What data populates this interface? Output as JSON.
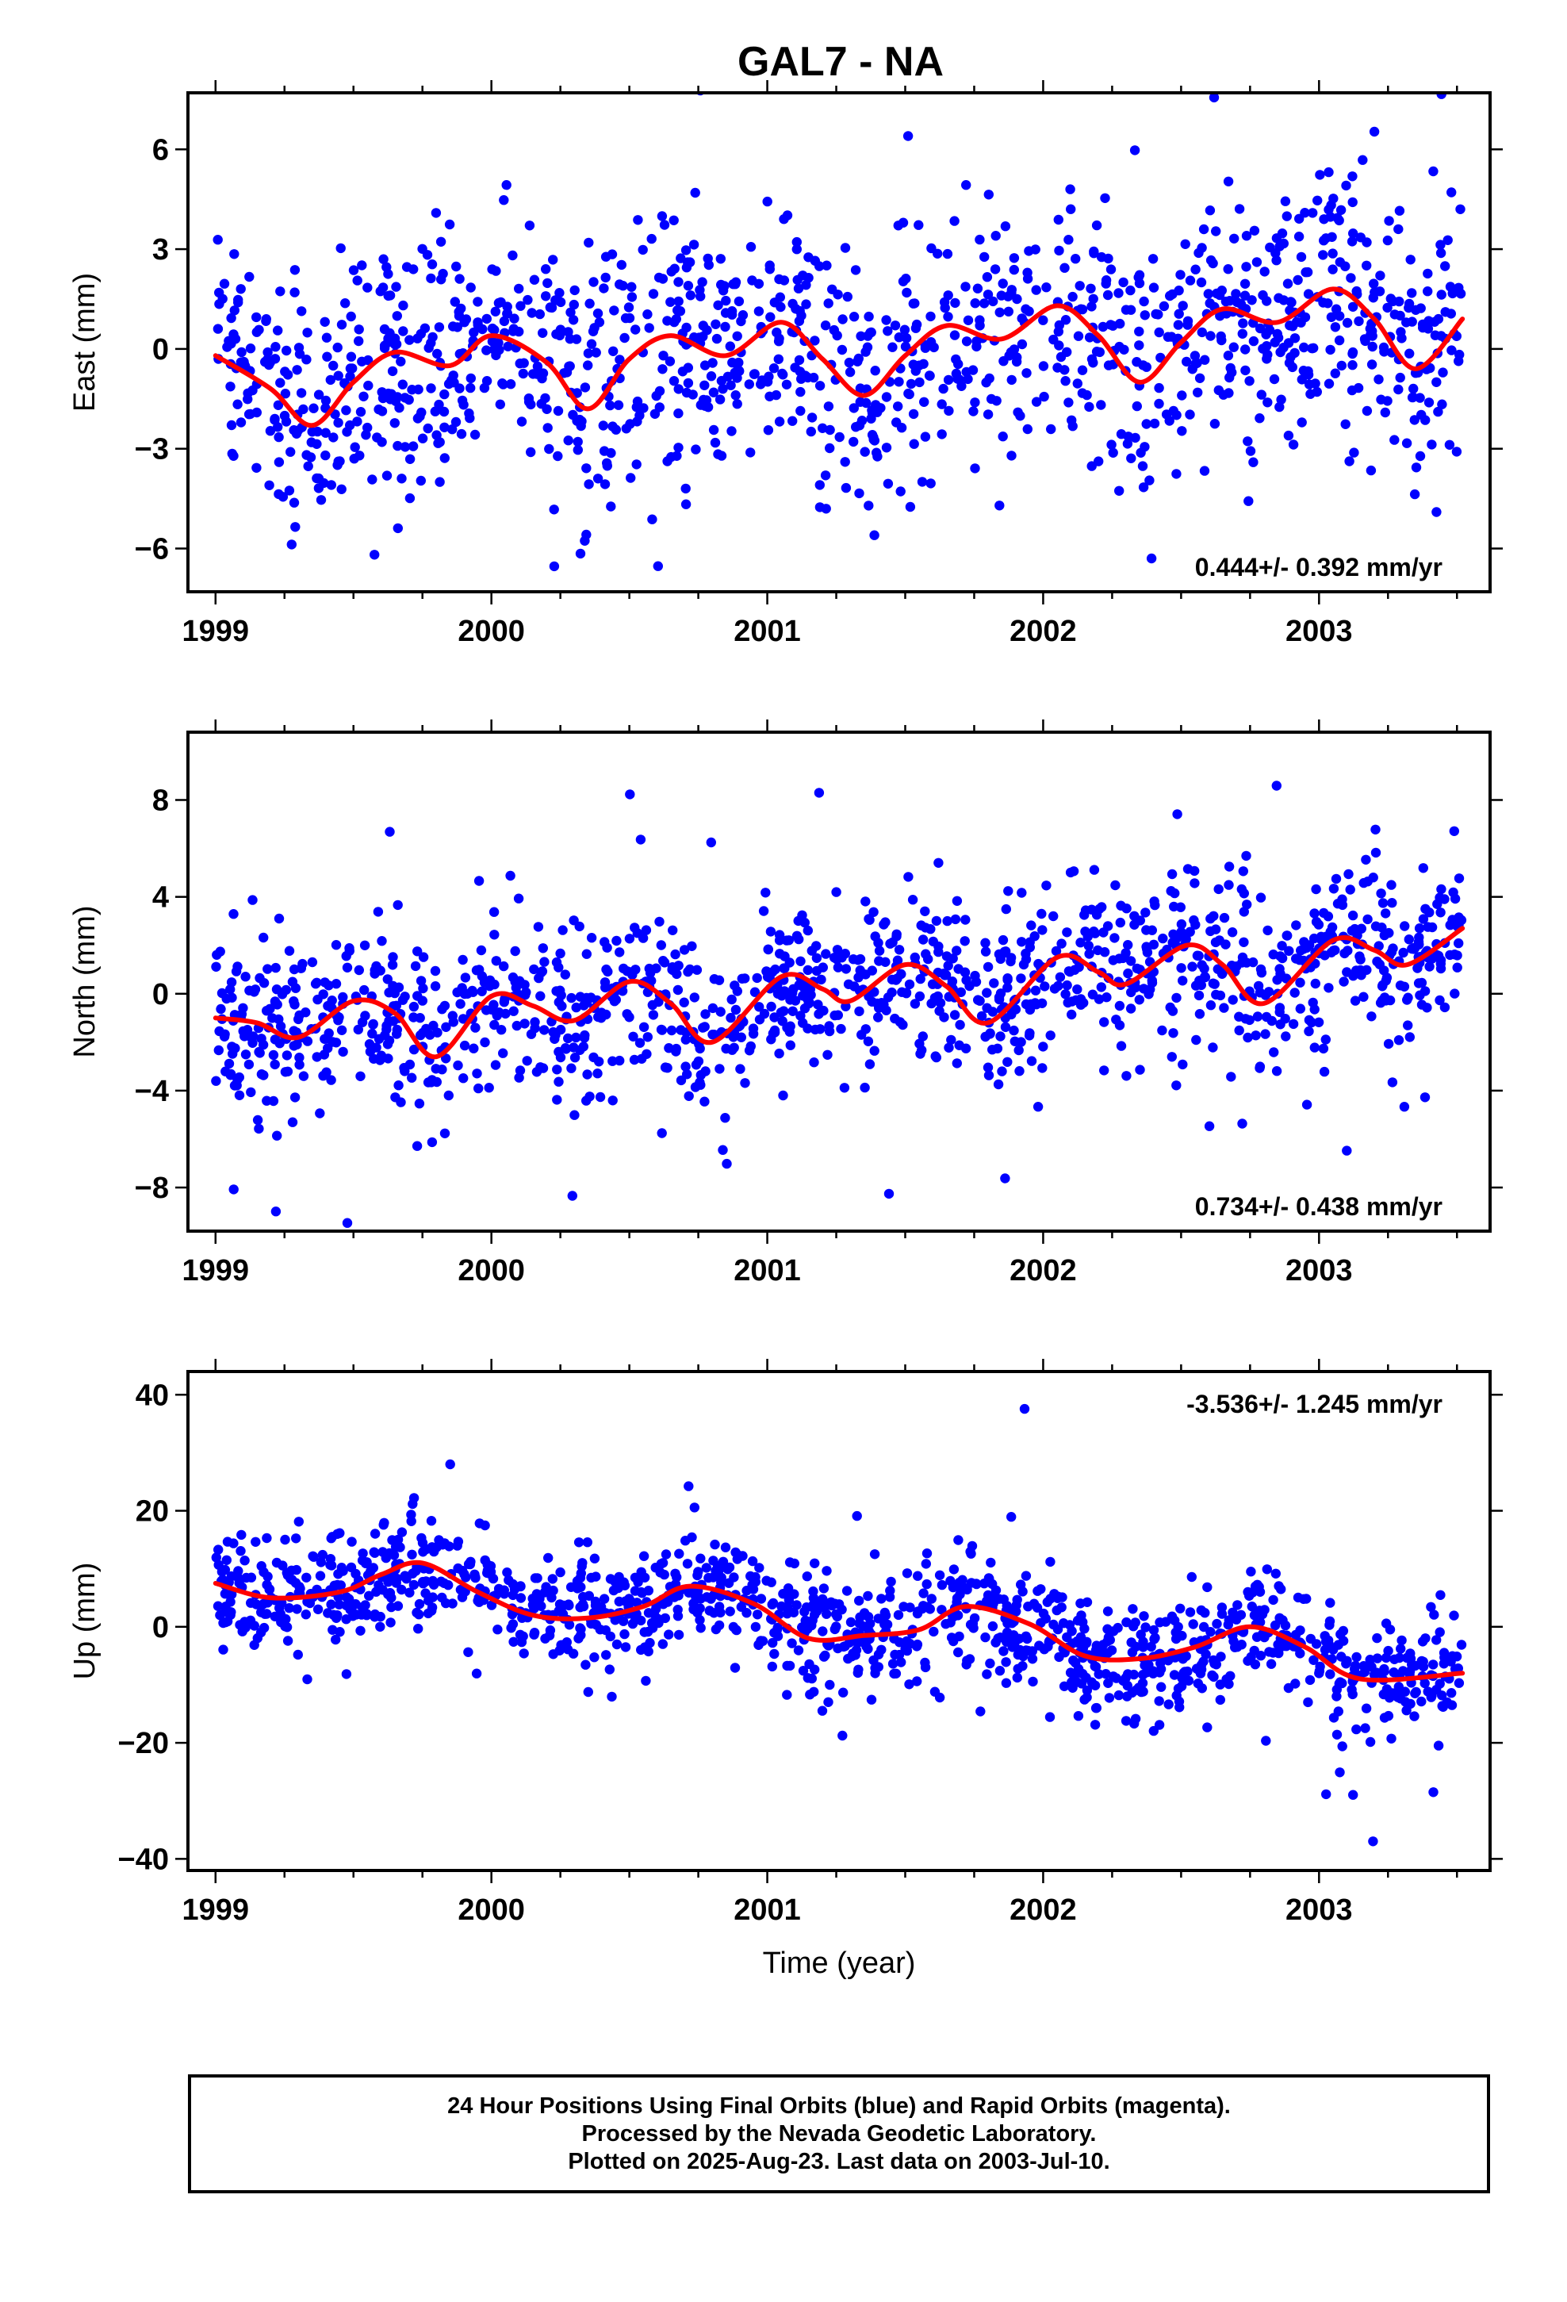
{
  "title": "GAL7 - NA",
  "xlabel": "Time (year)",
  "footer": {
    "line1": "24 Hour Positions Using Final Orbits (blue) and Rapid Orbits (magenta).",
    "line2": "Processed by the Nevada Geodetic Laboratory.",
    "line3": "Plotted on 2025-Aug-23. Last data on 2003-Jul-10."
  },
  "colors": {
    "points": "#0000ff",
    "fit": "#ff0000",
    "axes": "#000000"
  },
  "chart_data": [
    {
      "type": "scatter",
      "ylabel": "East (mm)",
      "rate_label": "0.444+/- 0.392 mm/yr",
      "xlim": [
        1998.9,
        2003.62
      ],
      "ylim": [
        -7.3,
        7.7
      ],
      "xticks": [
        1999,
        2000,
        2001,
        2002,
        2003
      ],
      "yticks": [
        -6,
        -3,
        0,
        3,
        6
      ],
      "ytick_labels": [
        "−6",
        "−3",
        "0",
        "3",
        "6"
      ],
      "grid": false,
      "fit_x": [
        1999.0,
        1999.2,
        1999.35,
        1999.5,
        1999.65,
        1999.85,
        2000.0,
        2000.2,
        2000.35,
        2000.5,
        2000.65,
        2000.85,
        2001.05,
        2001.2,
        2001.35,
        2001.5,
        2001.65,
        2001.85,
        2002.05,
        2002.2,
        2002.35,
        2002.5,
        2002.65,
        2002.85,
        2003.05,
        2003.2,
        2003.35,
        2003.52
      ],
      "fit_y": [
        -0.2,
        -1.2,
        -2.3,
        -1.0,
        -0.1,
        -0.5,
        0.4,
        -0.4,
        -1.8,
        -0.3,
        0.4,
        -0.2,
        0.8,
        -0.3,
        -1.4,
        -0.2,
        0.7,
        0.3,
        1.3,
        0.4,
        -1.0,
        0.2,
        1.2,
        0.8,
        1.8,
        0.9,
        -0.6,
        0.9
      ],
      "scatter_model": {
        "n": 1300,
        "seed": 11,
        "noise_sd": 1.9,
        "outlier_fraction": 0.04,
        "outlier_scale": 2.6
      }
    },
    {
      "type": "scatter",
      "ylabel": "North (mm)",
      "rate_label": "0.734+/- 0.438 mm/yr",
      "xlim": [
        1998.9,
        2003.62
      ],
      "ylim": [
        -9.8,
        10.8
      ],
      "xticks": [
        1999,
        2000,
        2001,
        2002,
        2003
      ],
      "yticks": [
        -8,
        -4,
        0,
        4,
        8
      ],
      "ytick_labels": [
        "−8",
        "−4",
        "0",
        "4",
        "8"
      ],
      "grid": false,
      "fit_x": [
        1999.0,
        1999.15,
        1999.3,
        1999.5,
        1999.65,
        1999.8,
        2000.0,
        2000.15,
        2000.3,
        2000.5,
        2000.65,
        2000.8,
        2001.05,
        2001.2,
        2001.3,
        2001.5,
        2001.65,
        2001.8,
        2002.05,
        2002.2,
        2002.3,
        2002.52,
        2002.65,
        2002.8,
        2003.05,
        2003.2,
        2003.32,
        2003.52
      ],
      "fit_y": [
        -1.0,
        -1.2,
        -1.8,
        -0.3,
        -0.8,
        -2.6,
        -0.1,
        -0.5,
        -1.1,
        0.5,
        -0.4,
        -2.0,
        0.7,
        0.2,
        -0.3,
        1.2,
        0.3,
        -1.2,
        1.5,
        0.9,
        0.4,
        2.0,
        1.2,
        -0.4,
        2.2,
        1.8,
        1.2,
        2.7
      ],
      "scatter_model": {
        "n": 1300,
        "seed": 23,
        "noise_sd": 1.7,
        "outlier_fraction": 0.04,
        "outlier_scale": 2.8
      }
    },
    {
      "type": "scatter",
      "ylabel": "Up (mm)",
      "rate_label": "-3.536+/- 1.245 mm/yr",
      "xlim": [
        1998.9,
        2003.62
      ],
      "ylim": [
        -42,
        44
      ],
      "xticks": [
        1999,
        2000,
        2001,
        2002,
        2003
      ],
      "yticks": [
        -40,
        -20,
        0,
        20,
        40
      ],
      "ytick_labels": [
        "−40",
        "−20",
        "0",
        "20",
        "40"
      ],
      "grid": false,
      "fit_x": [
        1999.0,
        1999.2,
        1999.45,
        1999.6,
        1999.75,
        1999.95,
        2000.15,
        2000.35,
        2000.55,
        2000.72,
        2000.95,
        2001.15,
        2001.35,
        2001.55,
        2001.72,
        2001.95,
        2002.15,
        2002.35,
        2002.55,
        2002.75,
        2002.95,
        2003.15,
        2003.52
      ],
      "fit_y": [
        7.5,
        5.0,
        6.0,
        9.0,
        11.0,
        6.0,
        2.0,
        1.5,
        3.5,
        7.0,
        4.0,
        -2.0,
        -1.5,
        -0.5,
        3.5,
        0.5,
        -5.0,
        -5.5,
        -3.5,
        0.0,
        -3.5,
        -9.0,
        -8.0
      ],
      "scatter_model": {
        "n": 1300,
        "seed": 37,
        "noise_sd": 5.0,
        "outlier_fraction": 0.04,
        "outlier_scale": 2.6
      }
    }
  ]
}
